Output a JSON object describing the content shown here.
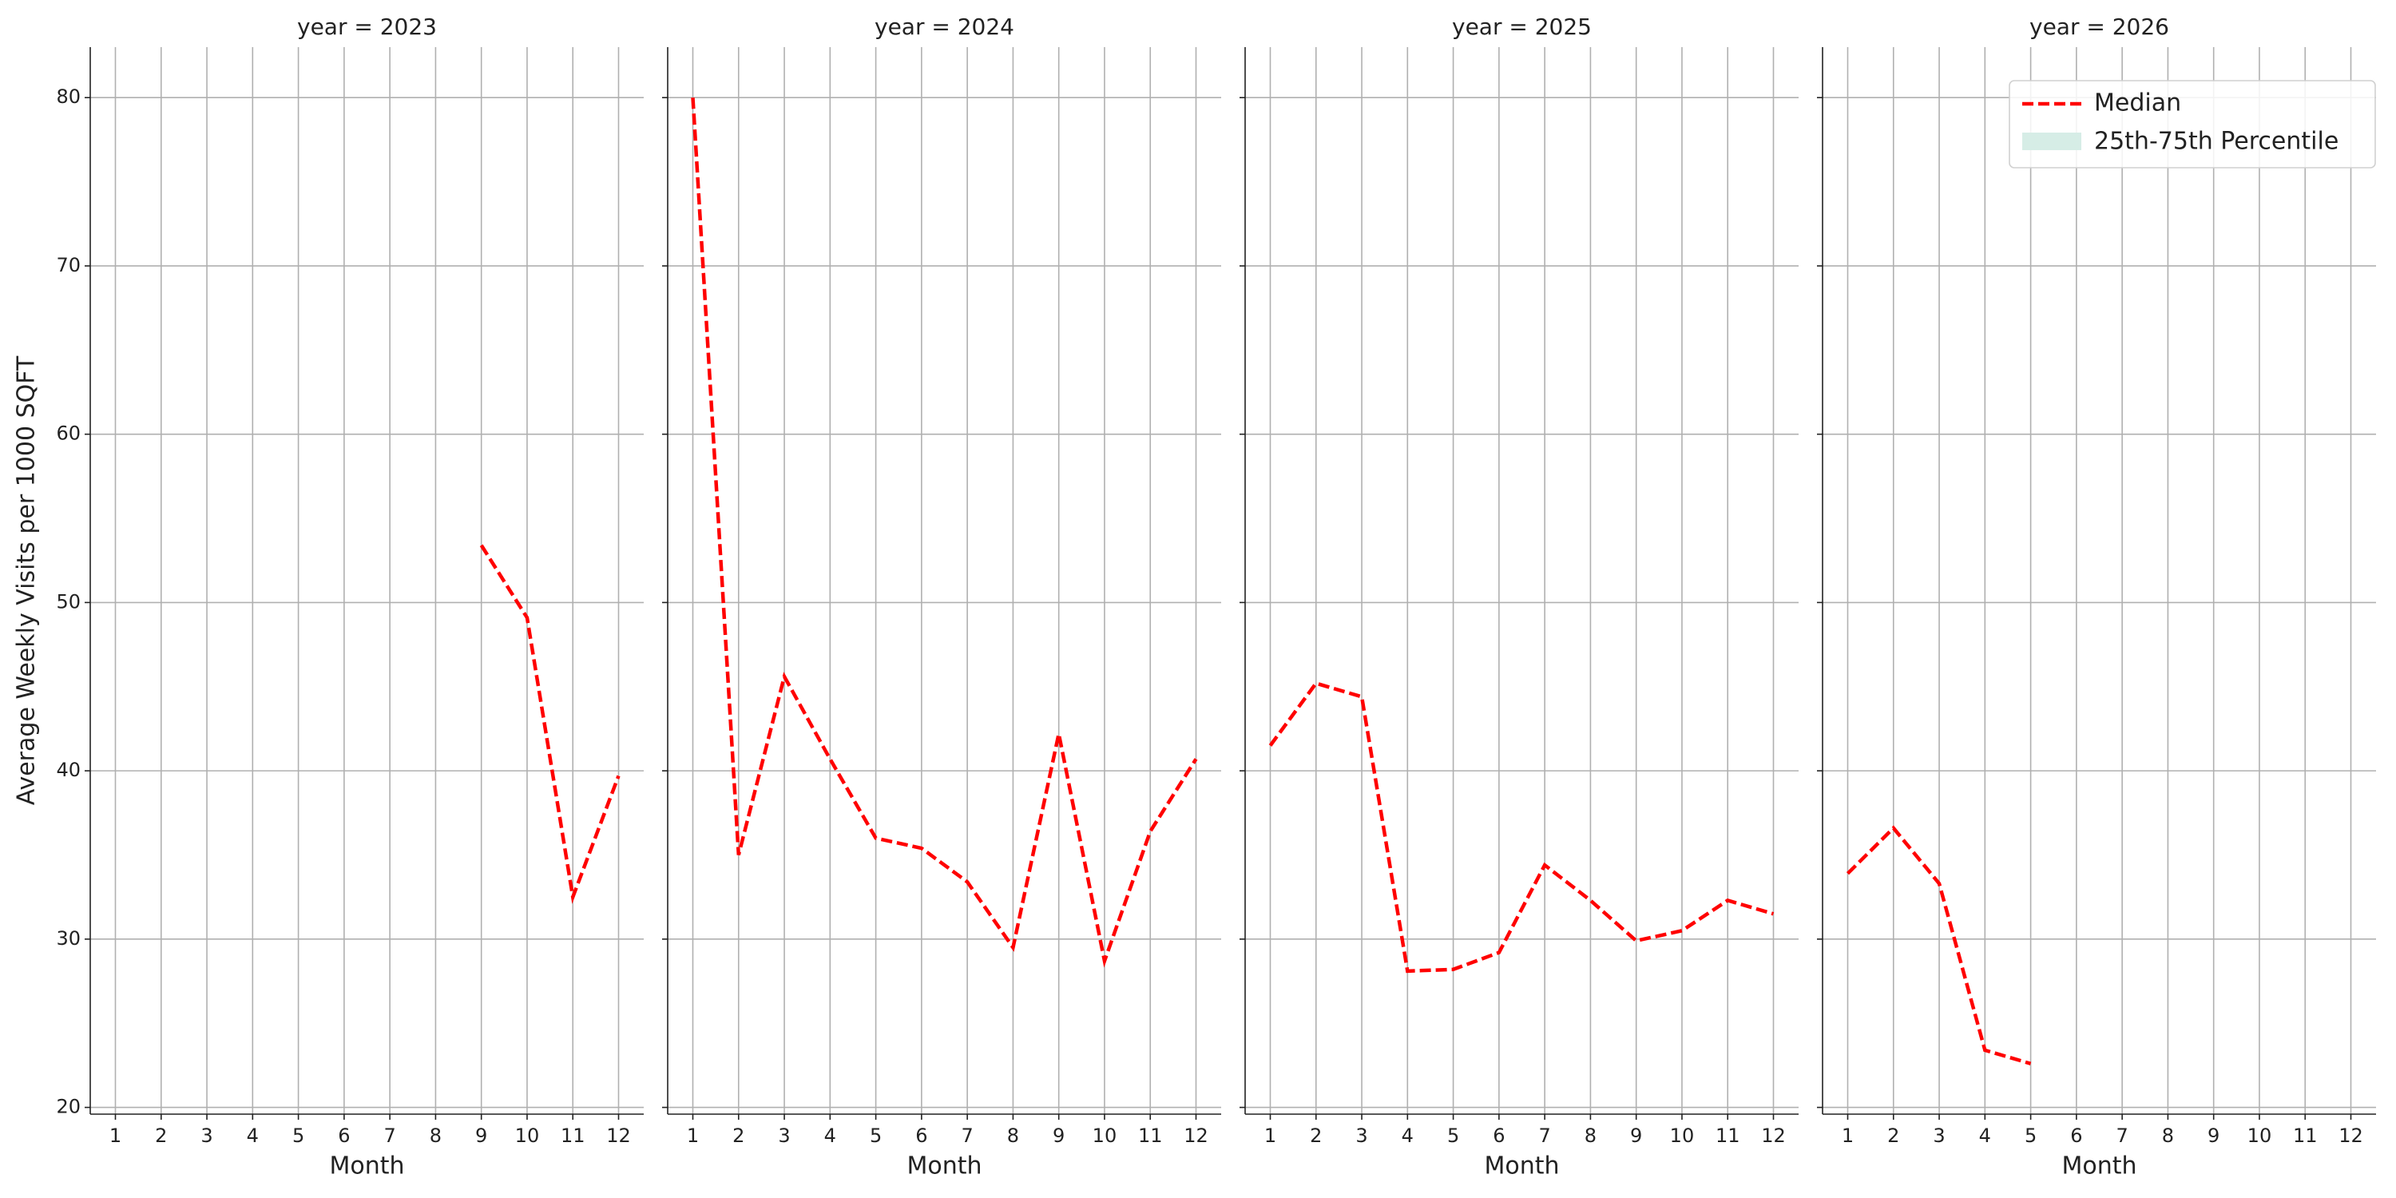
{
  "chart_data": [
    {
      "type": "line",
      "title": "year = 2023",
      "x_label": "Month",
      "y_label": "Average Weekly Visits per 1000 SQFT",
      "x": [
        1,
        2,
        3,
        4,
        5,
        6,
        7,
        8,
        9,
        10,
        11,
        12
      ],
      "series": [
        {
          "name": "Median",
          "color": "#ff0000",
          "values": [
            null,
            null,
            null,
            null,
            null,
            null,
            null,
            null,
            53.4,
            49.1,
            32.5,
            39.7
          ]
        }
      ],
      "xlim": [
        0.45,
        12.55
      ],
      "ylim": [
        19.6,
        83
      ],
      "xticks": [
        1,
        2,
        3,
        4,
        5,
        6,
        7,
        8,
        9,
        10,
        11,
        12
      ],
      "yticks": [
        20,
        30,
        40,
        50,
        60,
        70,
        80
      ],
      "grid": true
    },
    {
      "type": "line",
      "title": "year = 2024",
      "x_label": "Month",
      "x": [
        1,
        2,
        3,
        4,
        5,
        6,
        7,
        8,
        9,
        10,
        11,
        12
      ],
      "series": [
        {
          "name": "Median",
          "color": "#ff0000",
          "values": [
            80.0,
            35.0,
            45.6,
            40.7,
            36.0,
            35.4,
            33.4,
            29.5,
            42.2,
            28.7,
            36.4,
            40.7
          ]
        }
      ],
      "xlim": [
        0.45,
        12.55
      ],
      "ylim": [
        19.6,
        83
      ],
      "xticks": [
        1,
        2,
        3,
        4,
        5,
        6,
        7,
        8,
        9,
        10,
        11,
        12
      ],
      "yticks": [
        20,
        30,
        40,
        50,
        60,
        70,
        80
      ],
      "grid": true
    },
    {
      "type": "line",
      "title": "year = 2025",
      "x_label": "Month",
      "x": [
        1,
        2,
        3,
        4,
        5,
        6,
        7,
        8,
        9,
        10,
        11,
        12
      ],
      "series": [
        {
          "name": "Median",
          "color": "#ff0000",
          "values": [
            41.5,
            45.2,
            44.4,
            28.1,
            28.2,
            29.2,
            34.4,
            32.3,
            29.9,
            30.5,
            32.3,
            31.5
          ]
        }
      ],
      "xlim": [
        0.45,
        12.55
      ],
      "ylim": [
        19.6,
        83
      ],
      "xticks": [
        1,
        2,
        3,
        4,
        5,
        6,
        7,
        8,
        9,
        10,
        11,
        12
      ],
      "yticks": [
        20,
        30,
        40,
        50,
        60,
        70,
        80
      ],
      "grid": true
    },
    {
      "type": "line",
      "title": "year = 2026",
      "x_label": "Month",
      "x": [
        1,
        2,
        3,
        4,
        5,
        6,
        7,
        8,
        9,
        10,
        11,
        12
      ],
      "series": [
        {
          "name": "Median",
          "color": "#ff0000",
          "values": [
            33.9,
            36.6,
            33.3,
            23.4,
            22.6,
            null,
            null,
            null,
            null,
            null,
            null,
            null
          ]
        }
      ],
      "band": {
        "name": "25th-75th Percentile",
        "color": "#d6ede6"
      },
      "legend": "upper right",
      "xlim": [
        0.45,
        12.55
      ],
      "ylim": [
        19.6,
        83
      ],
      "xticks": [
        1,
        2,
        3,
        4,
        5,
        6,
        7,
        8,
        9,
        10,
        11,
        12
      ],
      "yticks": [
        20,
        30,
        40,
        50,
        60,
        70,
        80
      ],
      "grid": true
    }
  ]
}
